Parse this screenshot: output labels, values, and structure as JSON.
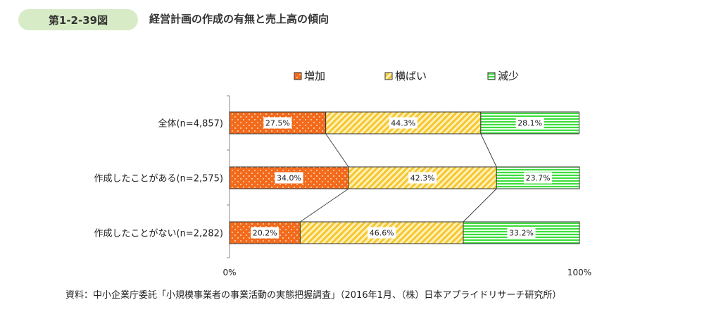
{
  "header": {
    "figure_number": "第1-2-39図",
    "title": "経営計画の作成の有無と売上高の傾向"
  },
  "chart_data": {
    "type": "bar",
    "stacked": true,
    "orientation": "horizontal",
    "categories": [
      "全体(n=4,857)",
      "作成したことがある(n=2,575)",
      "作成したことがない(n=2,282)"
    ],
    "series": [
      {
        "name": "増加",
        "values": [
          27.5,
          34.0,
          20.2
        ],
        "labels": [
          "27.5%",
          "34.0%",
          "20.2%"
        ],
        "color": "#f26a1b",
        "pattern": "dots"
      },
      {
        "name": "横ばい",
        "values": [
          44.3,
          42.3,
          46.6
        ],
        "labels": [
          "44.3%",
          "42.3%",
          "46.6%"
        ],
        "color": "#ffd966",
        "pattern": "diagonal"
      },
      {
        "name": "減少",
        "values": [
          28.1,
          23.7,
          33.2
        ],
        "labels": [
          "28.1%",
          "23.7%",
          "33.2%"
        ],
        "color": "#5ee65e",
        "pattern": "horizontal"
      }
    ],
    "xlim": [
      0,
      100
    ],
    "x_tick_labels": [
      "0%",
      "100%"
    ],
    "legend_position": "top",
    "connector_lines": true
  },
  "source": "資料：中小企業庁委託「小規模事業者の事業活動の実態把握調査」（2016年1月、（株）日本アプライドリサーチ研究所）"
}
